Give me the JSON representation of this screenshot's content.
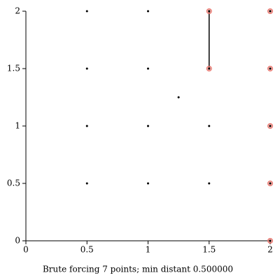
{
  "chart_data": {
    "type": "scatter",
    "xlabel": "Brute forcing 7 points; min distant 0.500000",
    "x": [
      0.5,
      1,
      0.5,
      1,
      1.25,
      0.5,
      1,
      1.5,
      0.5,
      1,
      1.5
    ],
    "y": [
      2,
      2,
      1.5,
      1.5,
      1.25,
      1,
      1,
      1,
      0.5,
      0.5,
      0.5
    ],
    "color": "#000000",
    "highlight": {
      "x": [
        1.5,
        1.5,
        2,
        2,
        2,
        2,
        2
      ],
      "y": [
        2,
        1.5,
        2,
        1.5,
        1,
        0.5,
        0
      ],
      "color": "#e8736b"
    },
    "segment": {
      "x": [
        1.5,
        1.5
      ],
      "y": [
        1.5,
        2
      ],
      "color": "#000000"
    },
    "xlim": [
      0,
      2
    ],
    "ylim": [
      0,
      2
    ],
    "xticks": [
      0,
      0.5,
      1,
      1.5,
      2
    ],
    "yticks": [
      0,
      0.5,
      1,
      1.5,
      2
    ]
  }
}
